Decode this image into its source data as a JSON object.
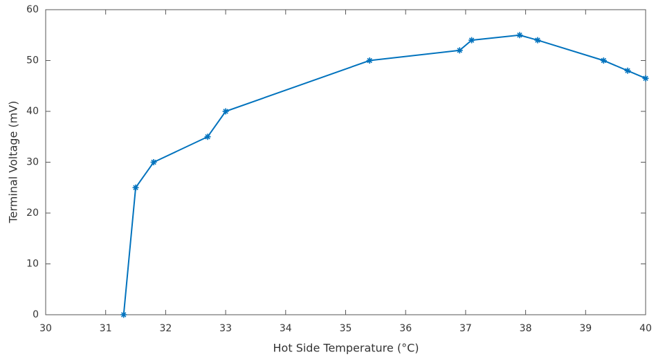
{
  "chart_data": {
    "type": "line",
    "x_label": "Hot Side Temperature (°C)",
    "y_label": "Terminal Voltage (mV)",
    "x": [
      31.3,
      31.5,
      31.8,
      32.7,
      33,
      35.4,
      36.9,
      37.1,
      37.9,
      38.2,
      39.3,
      39.7,
      40
    ],
    "series": [
      {
        "color": "#0072bd",
        "values": [
          0,
          25,
          30,
          35,
          40,
          50,
          52,
          54,
          55,
          54,
          50,
          48,
          46.5
        ]
      }
    ],
    "xlim": [
      30,
      40
    ],
    "ylim": [
      0,
      60
    ],
    "xticks": [
      30,
      31,
      32,
      33,
      34,
      35,
      36,
      37,
      38,
      39,
      40
    ],
    "yticks": [
      0,
      10,
      20,
      30,
      40,
      50,
      60
    ]
  }
}
